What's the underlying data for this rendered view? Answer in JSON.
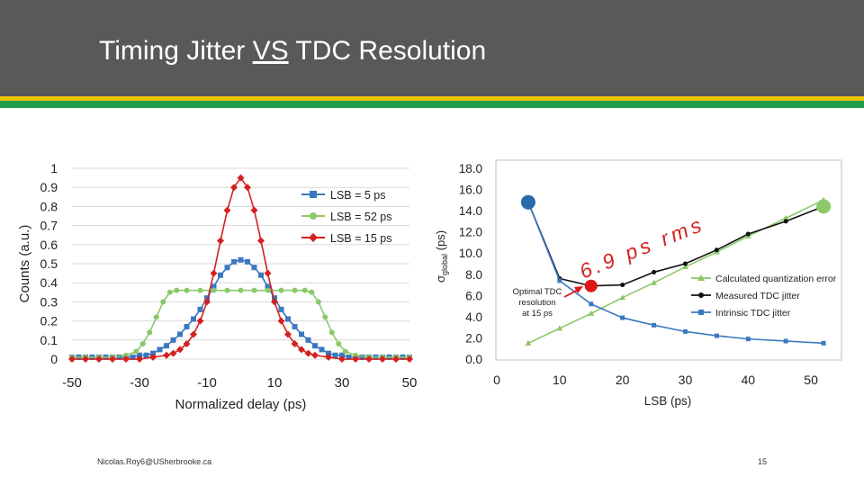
{
  "slide": {
    "title_pre": "Timing Jitter ",
    "title_underlined": "VS",
    "title_post": " TDC Resolution",
    "footer": "Nicolas.Roy6@USherbrooke.ca",
    "page_number": "15"
  },
  "colors": {
    "header": "#595959",
    "stripe_yellow": "#f2c400",
    "stripe_green": "#1e9e48",
    "blue": "#3a78c0",
    "green": "#8cc86a",
    "red": "#d42020",
    "black": "#111111"
  },
  "chart_data": [
    {
      "type": "line",
      "title": "",
      "xlabel": "Normalized delay (ps)",
      "ylabel": "Counts (a.u.)",
      "xlim": [
        -50,
        50
      ],
      "ylim": [
        0,
        1
      ],
      "xticks": [
        "-50",
        "-30",
        "-10",
        "10",
        "30",
        "50"
      ],
      "yticks": [
        "0",
        "0.1",
        "0.2",
        "0.3",
        "0.4",
        "0.5",
        "0.6",
        "0.7",
        "0.8",
        "0.9",
        "1"
      ],
      "legend_position": "top-right",
      "series": [
        {
          "name": "LSB = 5 ps",
          "color": "#3a78c0",
          "marker": "square",
          "x": [
            -50,
            -48,
            -46,
            -44,
            -42,
            -40,
            -38,
            -36,
            -34,
            -32,
            -30,
            -28,
            -26,
            -24,
            -22,
            -20,
            -18,
            -16,
            -14,
            -12,
            -10,
            -8,
            -6,
            -4,
            -2,
            0,
            2,
            4,
            6,
            8,
            10,
            12,
            14,
            16,
            18,
            20,
            22,
            24,
            26,
            28,
            30,
            32,
            34,
            36,
            38,
            40,
            42,
            44,
            46,
            48,
            50
          ],
          "y": [
            0.01,
            0.01,
            0.01,
            0.01,
            0.01,
            0.01,
            0.01,
            0.01,
            0.01,
            0.01,
            0.02,
            0.02,
            0.03,
            0.05,
            0.07,
            0.1,
            0.13,
            0.17,
            0.21,
            0.26,
            0.32,
            0.38,
            0.44,
            0.48,
            0.51,
            0.52,
            0.51,
            0.48,
            0.44,
            0.38,
            0.32,
            0.26,
            0.21,
            0.17,
            0.13,
            0.1,
            0.07,
            0.05,
            0.03,
            0.02,
            0.02,
            0.01,
            0.01,
            0.01,
            0.01,
            0.01,
            0.01,
            0.01,
            0.01,
            0.01,
            0.01
          ]
        },
        {
          "name": "LSB = 52 ps",
          "color": "#8cc86a",
          "marker": "circle",
          "x": [
            -50,
            -46,
            -42,
            -38,
            -34,
            -31,
            -29,
            -27,
            -25,
            -23,
            -21,
            -19,
            -16,
            -12,
            -8,
            -4,
            0,
            4,
            8,
            12,
            16,
            19,
            21,
            23,
            25,
            27,
            29,
            31,
            34,
            38,
            42,
            46,
            50
          ],
          "y": [
            0.01,
            0.01,
            0.01,
            0.01,
            0.02,
            0.04,
            0.08,
            0.14,
            0.22,
            0.3,
            0.35,
            0.36,
            0.36,
            0.36,
            0.36,
            0.36,
            0.36,
            0.36,
            0.36,
            0.36,
            0.36,
            0.36,
            0.35,
            0.3,
            0.22,
            0.14,
            0.08,
            0.04,
            0.02,
            0.01,
            0.01,
            0.01,
            0.01
          ]
        },
        {
          "name": "LSB = 15 ps",
          "color": "#d42020",
          "marker": "diamond",
          "x": [
            -50,
            -46,
            -42,
            -38,
            -34,
            -30,
            -26,
            -22,
            -20,
            -18,
            -16,
            -14,
            -12,
            -10,
            -8,
            -6,
            -4,
            -2,
            0,
            2,
            4,
            6,
            8,
            10,
            12,
            14,
            16,
            18,
            20,
            22,
            26,
            30,
            34,
            38,
            42,
            46,
            50
          ],
          "y": [
            0.0,
            0.0,
            0.0,
            0.0,
            0.0,
            0.0,
            0.01,
            0.02,
            0.03,
            0.05,
            0.08,
            0.13,
            0.2,
            0.3,
            0.45,
            0.62,
            0.78,
            0.9,
            0.95,
            0.9,
            0.78,
            0.62,
            0.45,
            0.3,
            0.2,
            0.13,
            0.08,
            0.05,
            0.03,
            0.02,
            0.01,
            0.0,
            0.0,
            0.0,
            0.0,
            0.0,
            0.0
          ]
        }
      ]
    },
    {
      "type": "line",
      "title": "",
      "xlabel": "LSB (ps)",
      "ylabel": "σglobal (ps)",
      "ylabel_main": "σ",
      "ylabel_sub": "global",
      "ylabel_unit": "(ps)",
      "xlim": [
        0,
        55
      ],
      "ylim": [
        0,
        18
      ],
      "xticks": [
        "0",
        "10",
        "20",
        "30",
        "40",
        "50"
      ],
      "yticks": [
        "0.0",
        "2.0",
        "4.0",
        "6.0",
        "8.0",
        "10.0",
        "12.0",
        "14.0",
        "16.0",
        "18.0"
      ],
      "legend_position": "bottom-right",
      "series": [
        {
          "name": "Calculated quantization error",
          "color": "#8cc86a",
          "marker": "triangle",
          "x": [
            5,
            10,
            15,
            20,
            25,
            30,
            35,
            40,
            46,
            52
          ],
          "y": [
            1.5,
            2.9,
            4.3,
            5.8,
            7.2,
            8.7,
            10.1,
            11.6,
            13.3,
            15.0
          ]
        },
        {
          "name": "Measured TDC jitter",
          "color": "#111111",
          "marker": "dot",
          "x": [
            5,
            10,
            15,
            20,
            25,
            30,
            35,
            40,
            46,
            52
          ],
          "y": [
            14.8,
            7.6,
            6.9,
            7.0,
            8.2,
            9.0,
            10.3,
            11.8,
            13.0,
            14.4
          ]
        },
        {
          "name": "Intrinsic TDC jitter",
          "color": "#3a78c0",
          "marker": "square",
          "x": [
            5,
            10,
            15,
            20,
            25,
            30,
            35,
            40,
            46,
            52
          ],
          "y": [
            14.8,
            7.4,
            5.2,
            3.9,
            3.2,
            2.6,
            2.2,
            1.9,
            1.7,
            1.5
          ]
        }
      ],
      "annotations": {
        "optimal_label_lines": [
          "Optimal TDC",
          "resolution",
          "at 15 ps"
        ],
        "highlight_text": "6.9 ps rms",
        "optimal_point": {
          "x": 15,
          "y": 6.9
        },
        "start_point": {
          "x": 5,
          "y": 14.8
        },
        "end_point": {
          "x": 52,
          "y": 14.4
        }
      }
    }
  ]
}
